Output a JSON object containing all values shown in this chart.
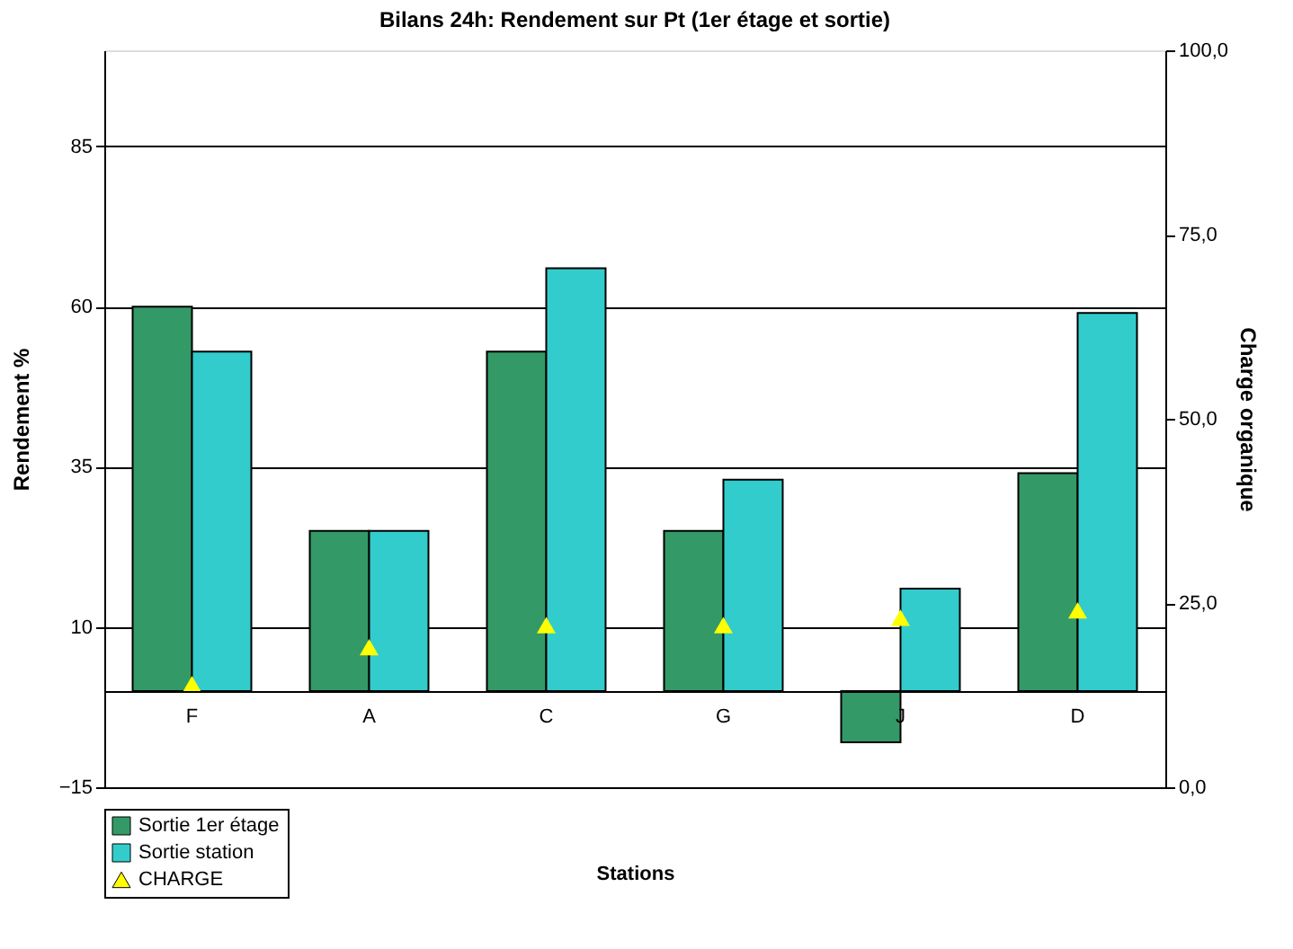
{
  "chart_data": {
    "type": "bar",
    "title": "Bilans 24h: Rendement sur Pt  (1er étage et sortie)",
    "xlabel": "Stations",
    "ylabel": "Rendement %",
    "y2label": "Charge organique",
    "categories": [
      "F",
      "A",
      "C",
      "G",
      "J",
      "D"
    ],
    "series": [
      {
        "name": "Sortie 1er étage",
        "color": "#339966",
        "values": [
          60,
          25,
          53,
          25,
          -8,
          34
        ]
      },
      {
        "name": "Sortie station",
        "color": "#33cccc",
        "values": [
          53,
          25,
          66,
          33,
          16,
          59
        ]
      },
      {
        "name": "CHARGE",
        "type": "scatter",
        "axis": "y2",
        "marker": "triangle",
        "color": "#ffff00",
        "values": [
          14,
          19,
          22,
          22,
          23,
          24
        ]
      }
    ],
    "ylim": [
      -15,
      100
    ],
    "yticks": [
      -15,
      10,
      35,
      60,
      85
    ],
    "y2lim": [
      0,
      100
    ],
    "y2ticks": [
      {
        "value": 0,
        "label": "0,0"
      },
      {
        "value": 25,
        "label": "25,0"
      },
      {
        "value": 50,
        "label": "50,0"
      },
      {
        "value": 75,
        "label": "75,0"
      },
      {
        "value": 100,
        "label": "100,0"
      }
    ],
    "grid": "y",
    "legend": "bottom left"
  }
}
